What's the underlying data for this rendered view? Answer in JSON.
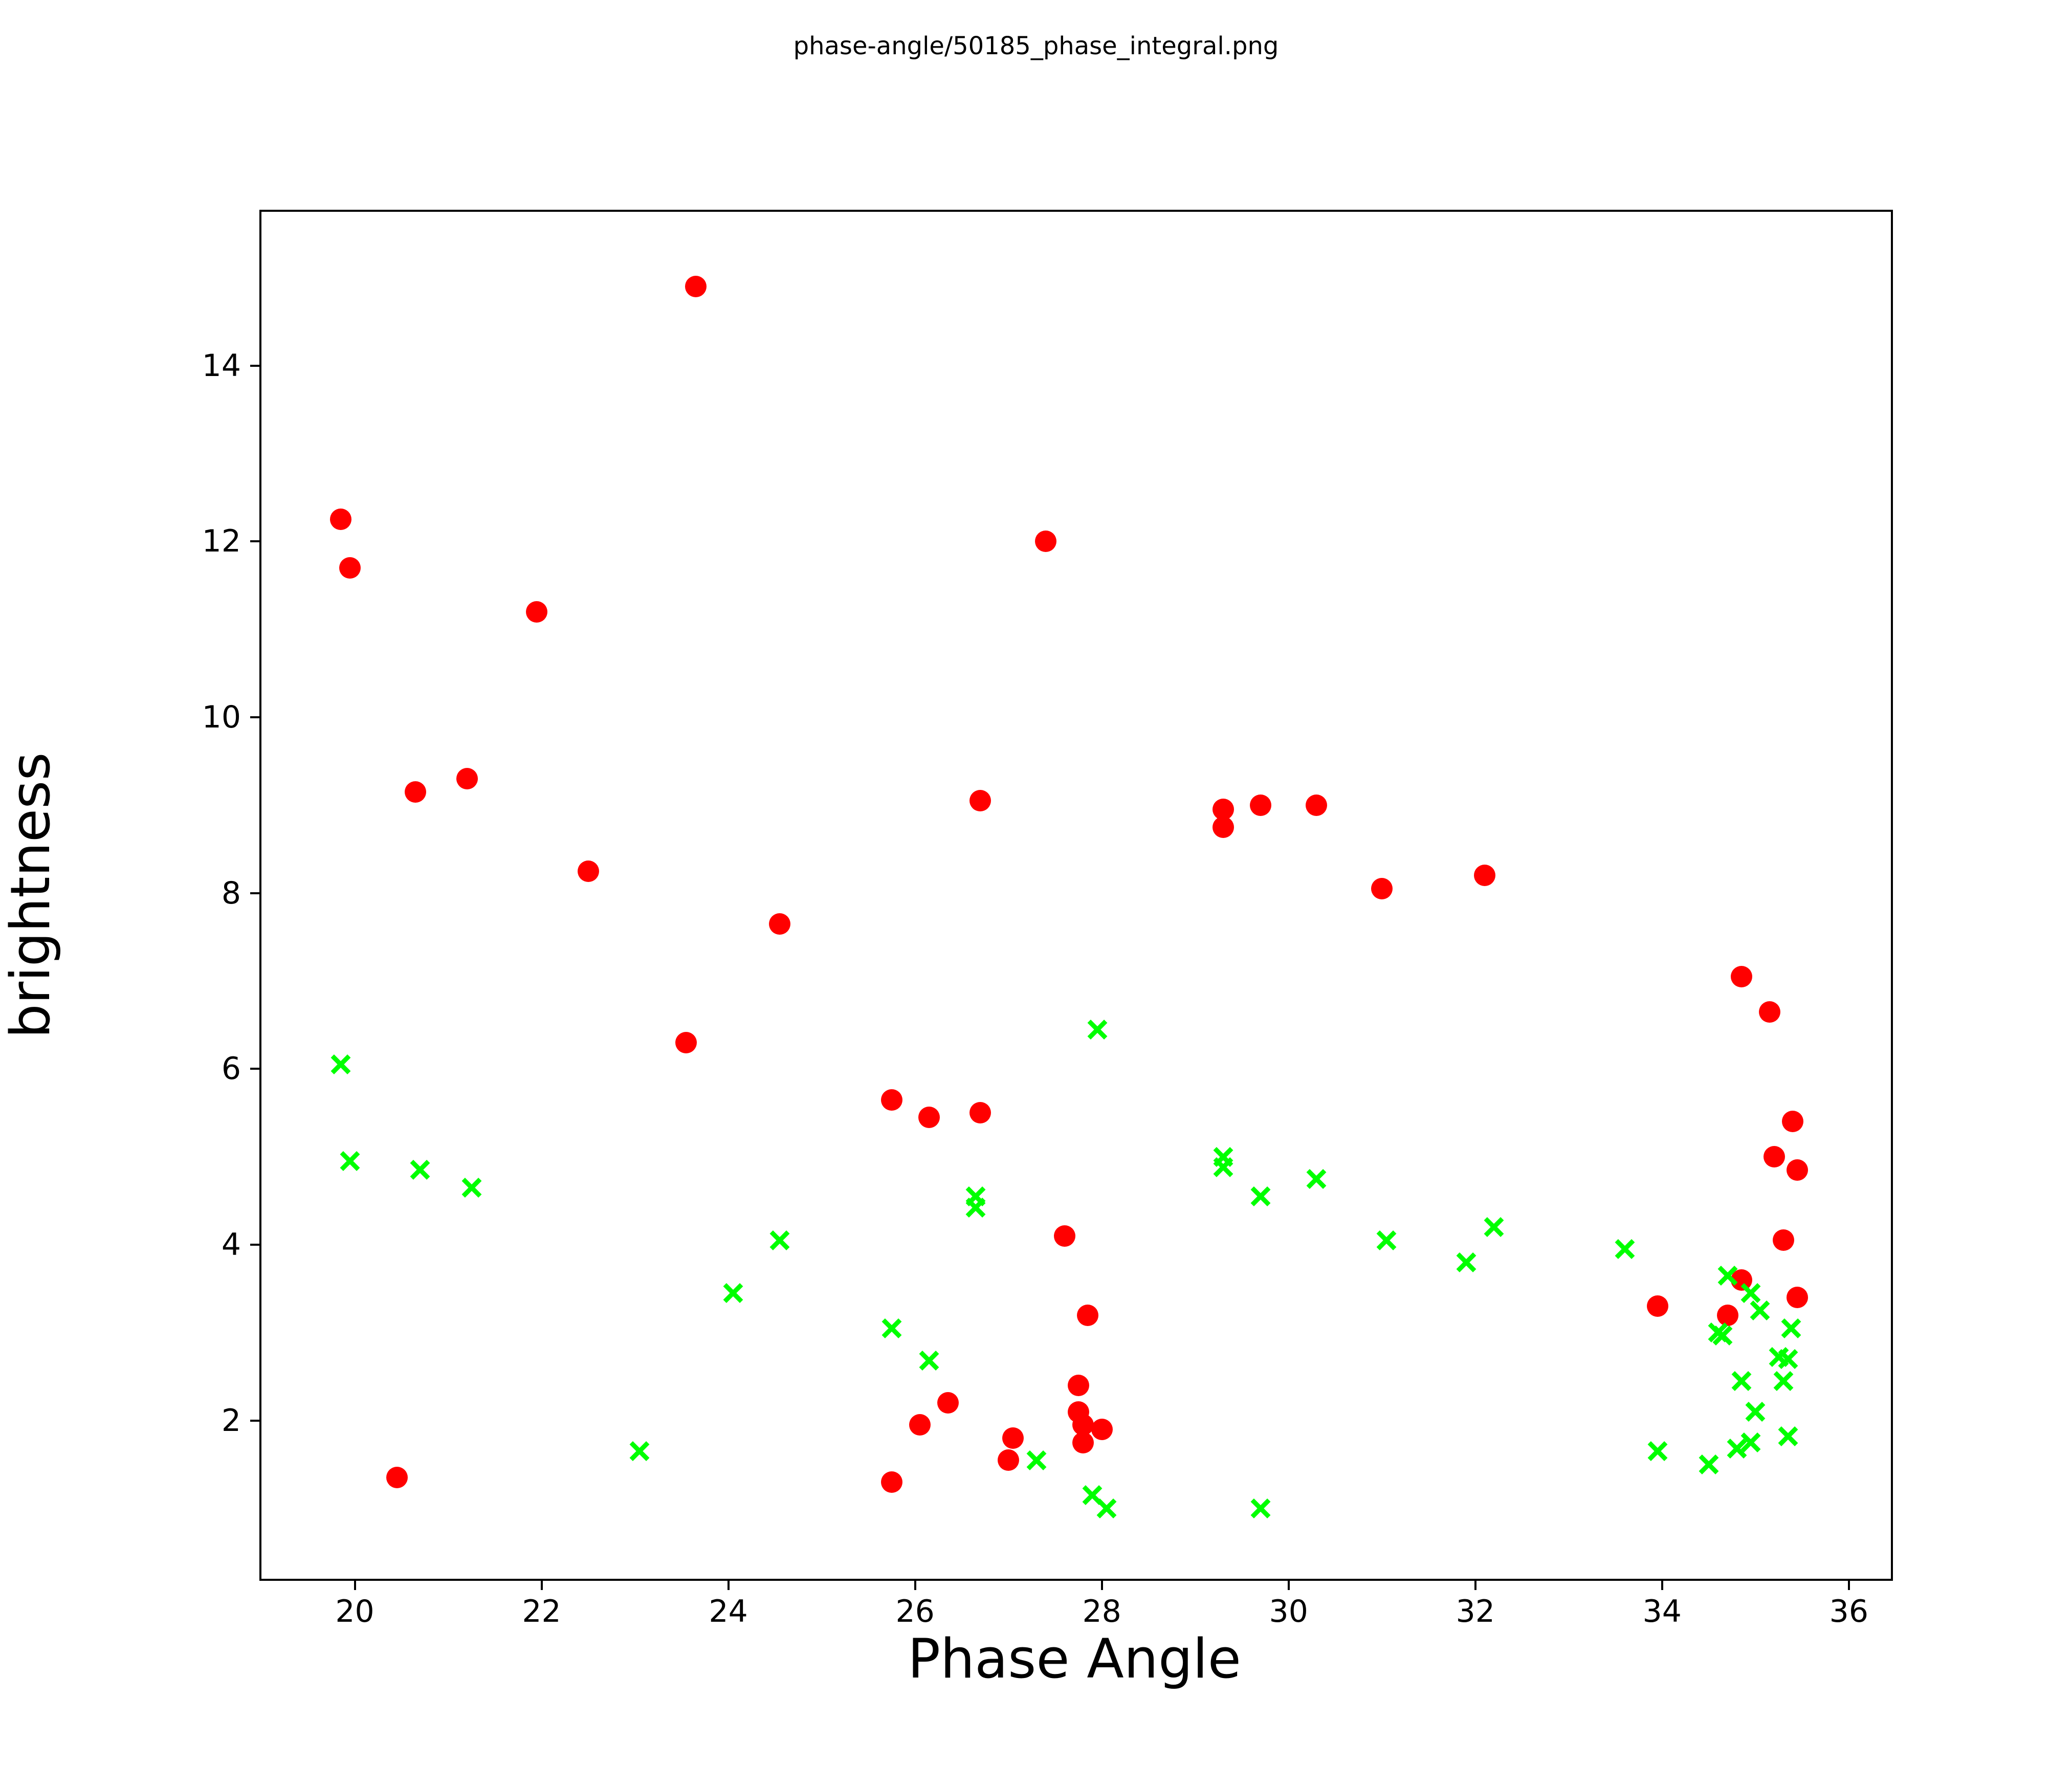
{
  "figure": {
    "title": "phase-angle/50185_phase_integral.png",
    "background_color": "#ffffff",
    "text_color": "#000000"
  },
  "chart_data": {
    "type": "scatter",
    "title": "phase-angle/50185_phase_integral.png",
    "xlabel": "Phase Angle",
    "ylabel": "brightness",
    "xlim": [
      19.0,
      36.45
    ],
    "ylim": [
      0.2,
      15.75
    ],
    "x_ticks": [
      20,
      22,
      24,
      26,
      28,
      30,
      32,
      34,
      36
    ],
    "y_ticks": [
      2,
      4,
      6,
      8,
      10,
      12,
      14
    ],
    "grid": false,
    "legend_position": "none",
    "series": [
      {
        "name": "red-filled-circles",
        "marker": "circle",
        "color": "#ff0000",
        "points": [
          [
            19.85,
            12.25
          ],
          [
            19.95,
            11.7
          ],
          [
            20.45,
            1.35
          ],
          [
            20.65,
            9.15
          ],
          [
            21.2,
            9.3
          ],
          [
            21.95,
            11.2
          ],
          [
            22.5,
            8.25
          ],
          [
            23.55,
            6.3
          ],
          [
            23.65,
            14.9
          ],
          [
            24.55,
            7.65
          ],
          [
            25.75,
            5.65
          ],
          [
            25.75,
            1.3
          ],
          [
            26.05,
            1.95
          ],
          [
            26.15,
            5.45
          ],
          [
            26.35,
            2.2
          ],
          [
            26.7,
            9.05
          ],
          [
            26.7,
            5.5
          ],
          [
            27.0,
            1.55
          ],
          [
            27.05,
            1.8
          ],
          [
            27.4,
            12.0
          ],
          [
            27.6,
            4.1
          ],
          [
            27.75,
            2.4
          ],
          [
            27.75,
            2.1
          ],
          [
            27.8,
            1.95
          ],
          [
            27.8,
            1.75
          ],
          [
            27.85,
            3.2
          ],
          [
            28.0,
            1.9
          ],
          [
            29.3,
            8.95
          ],
          [
            29.3,
            8.75
          ],
          [
            29.7,
            9.0
          ],
          [
            30.3,
            9.0
          ],
          [
            31.0,
            8.05
          ],
          [
            32.1,
            8.2
          ],
          [
            33.95,
            3.3
          ],
          [
            34.7,
            3.2
          ],
          [
            34.85,
            3.6
          ],
          [
            34.85,
            7.05
          ],
          [
            35.15,
            6.65
          ],
          [
            35.2,
            5.0
          ],
          [
            35.3,
            4.05
          ],
          [
            35.4,
            5.4
          ],
          [
            35.45,
            4.85
          ],
          [
            35.45,
            3.4
          ]
        ]
      },
      {
        "name": "green-x-crosses",
        "marker": "x",
        "color": "#00ff00",
        "points": [
          [
            19.85,
            6.05
          ],
          [
            19.95,
            4.95
          ],
          [
            20.7,
            4.85
          ],
          [
            21.25,
            4.65
          ],
          [
            23.05,
            1.65
          ],
          [
            24.05,
            3.45
          ],
          [
            24.55,
            4.05
          ],
          [
            25.75,
            3.05
          ],
          [
            26.15,
            2.68
          ],
          [
            26.65,
            4.55
          ],
          [
            26.65,
            4.42
          ],
          [
            27.3,
            1.55
          ],
          [
            27.9,
            1.15
          ],
          [
            27.95,
            6.45
          ],
          [
            28.05,
            1.0
          ],
          [
            29.3,
            5.0
          ],
          [
            29.3,
            4.88
          ],
          [
            29.7,
            4.55
          ],
          [
            29.7,
            1.0
          ],
          [
            30.3,
            4.75
          ],
          [
            31.05,
            4.05
          ],
          [
            31.9,
            3.8
          ],
          [
            32.2,
            4.2
          ],
          [
            33.6,
            3.95
          ],
          [
            33.95,
            1.65
          ],
          [
            34.5,
            1.5
          ],
          [
            34.6,
            3.0
          ],
          [
            34.65,
            2.97
          ],
          [
            34.7,
            3.65
          ],
          [
            34.8,
            1.68
          ],
          [
            34.95,
            1.75
          ],
          [
            34.95,
            3.45
          ],
          [
            35.05,
            3.25
          ],
          [
            34.85,
            2.45
          ],
          [
            35.0,
            2.1
          ],
          [
            35.25,
            2.72
          ],
          [
            35.35,
            2.7
          ],
          [
            35.3,
            2.45
          ],
          [
            35.38,
            3.05
          ],
          [
            35.35,
            1.82
          ]
        ]
      }
    ]
  }
}
